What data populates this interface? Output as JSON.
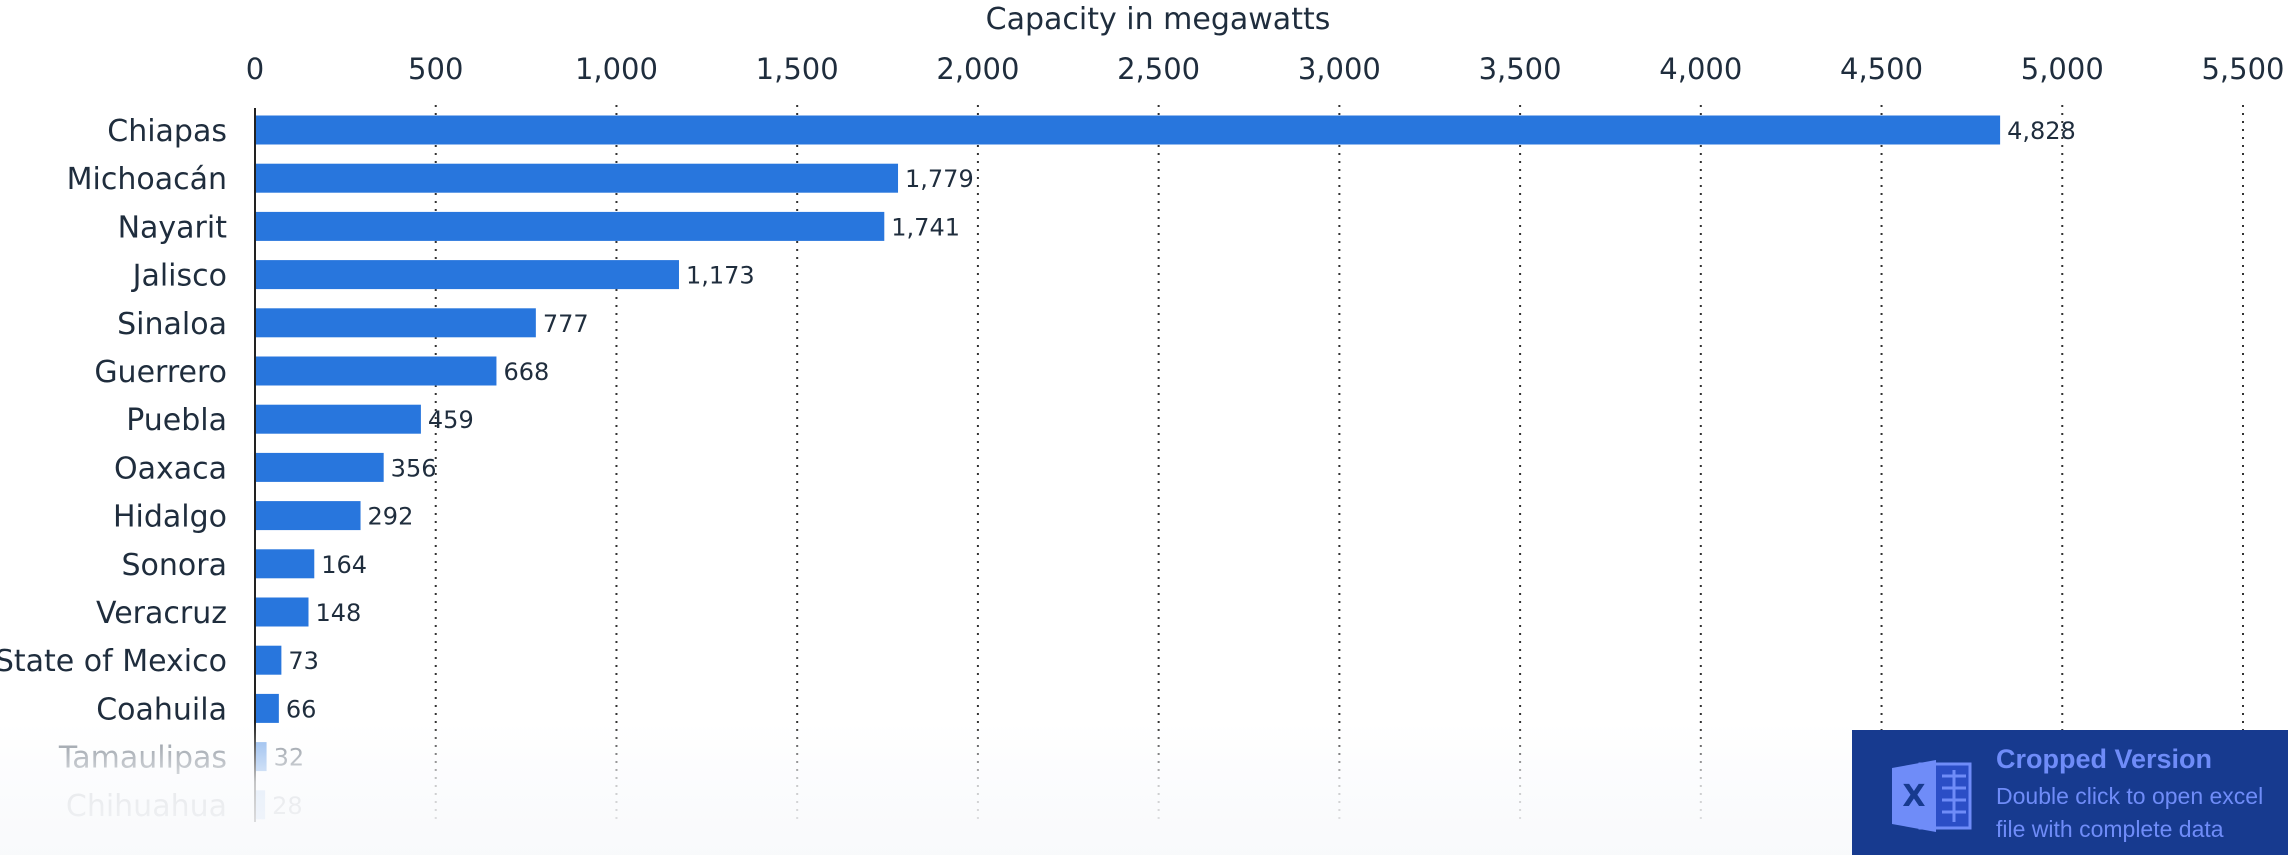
{
  "chart_data": {
    "type": "bar",
    "orientation": "horizontal",
    "title": "",
    "xlabel": "Capacity in megawatts",
    "ylabel": "",
    "xlim": [
      0,
      5500
    ],
    "x_ticks": [
      0,
      500,
      1000,
      1500,
      2000,
      2500,
      3000,
      3500,
      4000,
      4500,
      5000,
      5500
    ],
    "x_tick_labels": [
      "0",
      "500",
      "1,000",
      "1,500",
      "2,000",
      "2,500",
      "3,000",
      "3,500",
      "4,000",
      "4,500",
      "5,000",
      "5,500"
    ],
    "x_axis_position": "top",
    "grid": true,
    "bar_color": "#2876dd",
    "categories": [
      "Chiapas",
      "Michoacán",
      "Nayarit",
      "Jalisco",
      "Sinaloa",
      "Guerrero",
      "Puebla",
      "Oaxaca",
      "Hidalgo",
      "Sonora",
      "Veracruz",
      "State of Mexico",
      "Coahuila",
      "Tamaulipas",
      "Chihuahua"
    ],
    "values": [
      4828,
      1779,
      1741,
      1173,
      777,
      668,
      459,
      356,
      292,
      164,
      148,
      73,
      66,
      32,
      28
    ],
    "value_labels": [
      "4,828",
      "1,779",
      "1,741",
      "1,173",
      "777",
      "668",
      "459",
      "356",
      "292",
      "164",
      "148",
      "73",
      "66",
      "32",
      "28"
    ]
  },
  "overlay": {
    "title": "Cropped Version",
    "line1": "Double click to open excel",
    "line2": "file with complete data",
    "icon": "excel-icon",
    "background_color": "#173a8f",
    "text_color": "#6f8cf8"
  }
}
